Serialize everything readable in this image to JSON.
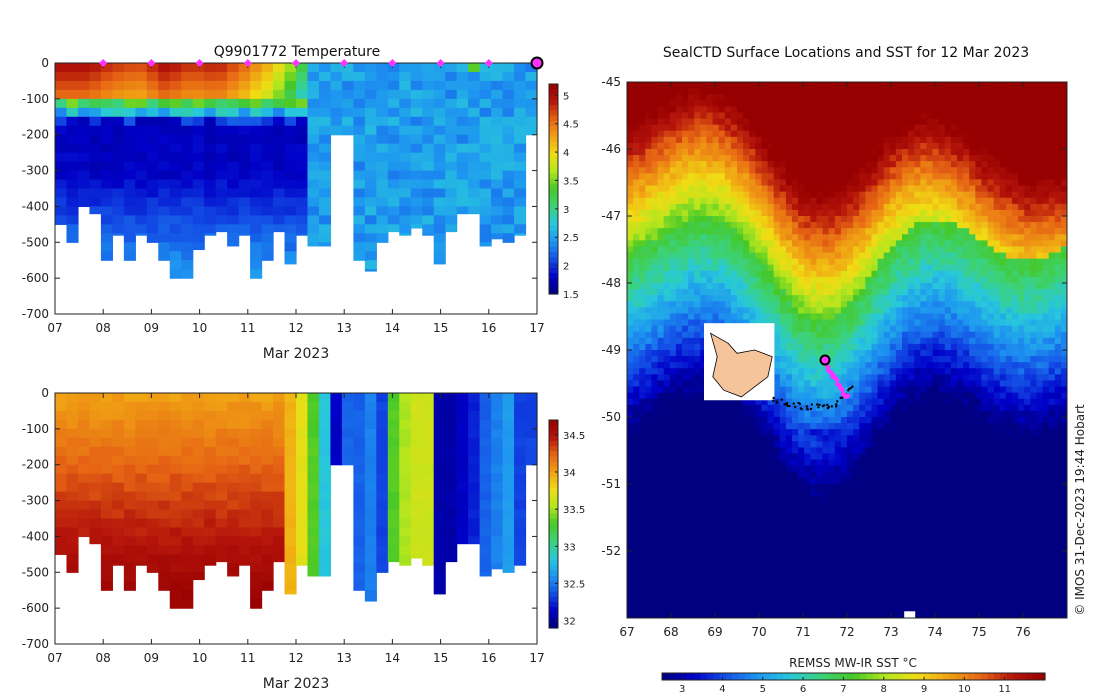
{
  "colors": {
    "temp_ramp": [
      "#000080",
      "#0000c8",
      "#1450e6",
      "#1e96f0",
      "#28c8dc",
      "#3cd278",
      "#46c828",
      "#b4e61e",
      "#f0dc14",
      "#f0a014",
      "#e66414",
      "#b4140a",
      "#960000"
    ],
    "marker": "#ff33ff",
    "island": "#f6c49a"
  },
  "chart_data": [
    {
      "id": "temperature-section",
      "type": "heatmap",
      "title": "Q9901772  Temperature",
      "xlabel": "Mar 2023",
      "ylabel": "",
      "x_ticks": [
        "07",
        "08",
        "09",
        "10",
        "11",
        "12",
        "13",
        "14",
        "15",
        "16",
        "17"
      ],
      "xlim": [
        7,
        17
      ],
      "ylim": [
        -700,
        0
      ],
      "y_ticks": [
        "0",
        "-100",
        "-200",
        "-300",
        "-400",
        "-500",
        "-600",
        "-700"
      ],
      "colorbar": {
        "min": 1.5,
        "max": 5.2,
        "ticks": [
          "1.5",
          "2",
          "2.5",
          "3",
          "3.5",
          "4",
          "4.5",
          "5"
        ]
      },
      "profile_day_markers": [
        8,
        9,
        10,
        11,
        12,
        13,
        14,
        15,
        16
      ],
      "latest_profile_marker": 17,
      "profile_depths": [
        -450,
        -500,
        -400,
        -420,
        -550,
        -480,
        -550,
        -480,
        -500,
        -550,
        -600,
        -600,
        -520,
        -480,
        -470,
        -510,
        -480,
        -600,
        -550,
        -470,
        -560,
        -480,
        -510,
        -510,
        -200,
        -200,
        -550,
        -580,
        -500,
        -470,
        -480,
        -460,
        -480,
        -560,
        -470,
        -420,
        -420,
        -510,
        -490,
        -500,
        -480,
        -200
      ],
      "surface_temp_trend": [
        5.0,
        5.0,
        4.8,
        4.7,
        5.0,
        4.8,
        4.9,
        4.6,
        4.2,
        3.5,
        2.5,
        2.6,
        3.0,
        2.5,
        2.6,
        2.5,
        2.6,
        2.7,
        2.5
      ]
    },
    {
      "id": "salinity-section",
      "type": "heatmap",
      "title": "",
      "xlabel": "Mar 2023",
      "ylabel": "",
      "x_ticks": [
        "07",
        "08",
        "09",
        "10",
        "11",
        "12",
        "13",
        "14",
        "15",
        "16",
        "17"
      ],
      "xlim": [
        7,
        17
      ],
      "ylim": [
        -700,
        0
      ],
      "y_ticks": [
        "0",
        "-100",
        "-200",
        "-300",
        "-400",
        "-500",
        "-600",
        "-700"
      ],
      "colorbar": {
        "min": 31.9,
        "max": 34.7,
        "ticks": [
          "32",
          "32.5",
          "33",
          "33.5",
          "34",
          "34.5"
        ]
      }
    },
    {
      "id": "sst-map",
      "type": "heatmap",
      "title": "SealCTD Surface Locations and SST for 12 Mar 2023",
      "x_ticks": [
        "67",
        "68",
        "69",
        "70",
        "71",
        "72",
        "73",
        "74",
        "75",
        "76"
      ],
      "y_ticks": [
        "-45",
        "-46",
        "-47",
        "-48",
        "-49",
        "-50",
        "-51",
        "-52"
      ],
      "xlim": [
        67,
        77
      ],
      "ylim": [
        -53,
        -45
      ],
      "colorbar": {
        "label": "REMSS MW-IR SST °C",
        "min": 2.5,
        "max": 12,
        "ticks": [
          "3",
          "4",
          "5",
          "6",
          "7",
          "8",
          "9",
          "10",
          "11"
        ]
      },
      "track_latest": {
        "lon": 71.5,
        "lat": -49.15
      },
      "credit": "© IMOS 31-Dec-2023 19:44 Hobart"
    }
  ]
}
